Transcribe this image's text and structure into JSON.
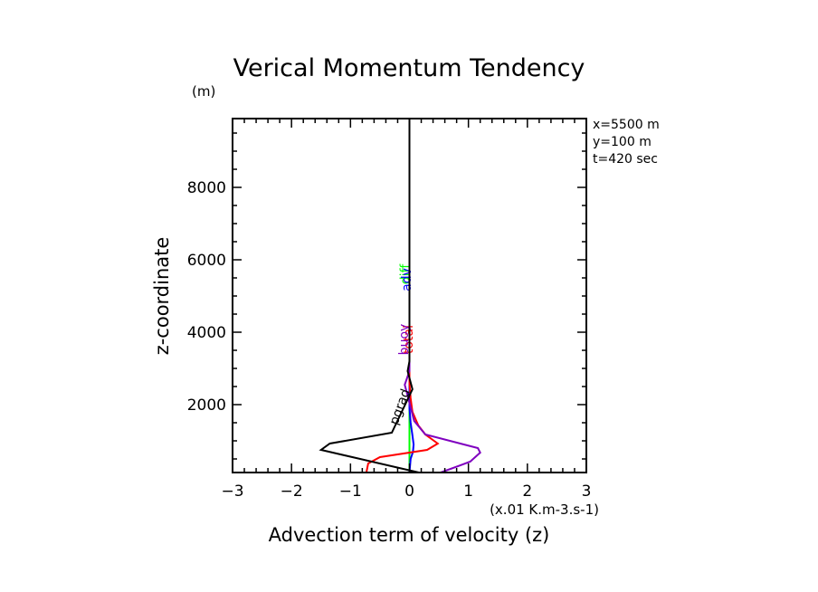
{
  "chart_data": {
    "type": "line",
    "title": "Verical Momentum Tendency",
    "xlabel": "Advection term of velocity (z)",
    "xunits": "(x.01 K.m-3.s-1)",
    "ylabel": "z-coordinate",
    "yunits": "(m)",
    "xlim": [
      -3,
      3
    ],
    "ylim": [
      125,
      9900
    ],
    "xticks": [
      -3,
      -2,
      -1,
      0,
      1,
      2,
      3
    ],
    "xtick_labels": [
      "−3",
      "−2",
      "−1",
      "0",
      "1",
      "2",
      "3"
    ],
    "yticks": [
      2000,
      4000,
      6000,
      8000
    ],
    "ytick_labels": [
      "2000",
      "4000",
      "6000",
      "8000"
    ],
    "grid": false,
    "info_lines": [
      "x=5500 m",
      "y=100 m",
      "t=420 sec"
    ],
    "series": [
      {
        "name": "pgrad",
        "color": "#000000",
        "label_at": [
          -0.1,
          1900
        ],
        "points": [
          [
            0.16,
            125
          ],
          [
            -1.5,
            750
          ],
          [
            -1.35,
            925
          ],
          [
            -0.3,
            1225
          ],
          [
            0.05,
            2425
          ],
          [
            -0.03,
            2925
          ],
          [
            0,
            3200
          ],
          [
            0,
            9900
          ]
        ]
      },
      {
        "name": "buoy",
        "color": "#7f00bf",
        "label_at": [
          -0.02,
          3800
        ],
        "points": [
          [
            0.53,
            125
          ],
          [
            1.03,
            425
          ],
          [
            1.2,
            675
          ],
          [
            1.16,
            800
          ],
          [
            0.27,
            1175
          ],
          [
            0.08,
            1550
          ],
          [
            0,
            2050
          ],
          [
            -0.08,
            2550
          ],
          [
            0,
            2925
          ],
          [
            0,
            6500
          ]
        ]
      },
      {
        "name": "total",
        "color": "#ff0000",
        "label_at": [
          0.05,
          3800
        ],
        "points": [
          [
            -0.73,
            125
          ],
          [
            -0.7,
            375
          ],
          [
            -0.5,
            550
          ],
          [
            0.3,
            750
          ],
          [
            0.48,
            925
          ],
          [
            0.27,
            1175
          ],
          [
            0.15,
            1425
          ],
          [
            0.05,
            1800
          ],
          [
            0.02,
            2175
          ],
          [
            0,
            2600
          ],
          [
            0,
            6500
          ]
        ]
      },
      {
        "name": "adv",
        "color": "#0000ff",
        "label_at": [
          0.02,
          5450
        ],
        "points": [
          [
            0,
            125
          ],
          [
            0.02,
            500
          ],
          [
            0.06,
            700
          ],
          [
            0.07,
            900
          ],
          [
            0.05,
            1150
          ],
          [
            0.02,
            1500
          ],
          [
            0,
            1900
          ],
          [
            0,
            6500
          ]
        ]
      },
      {
        "name": "diff",
        "color": "#00ff00",
        "label_at": [
          0.0,
          5600
        ],
        "points": [
          [
            0,
            125
          ],
          [
            0,
            6500
          ]
        ]
      }
    ]
  }
}
